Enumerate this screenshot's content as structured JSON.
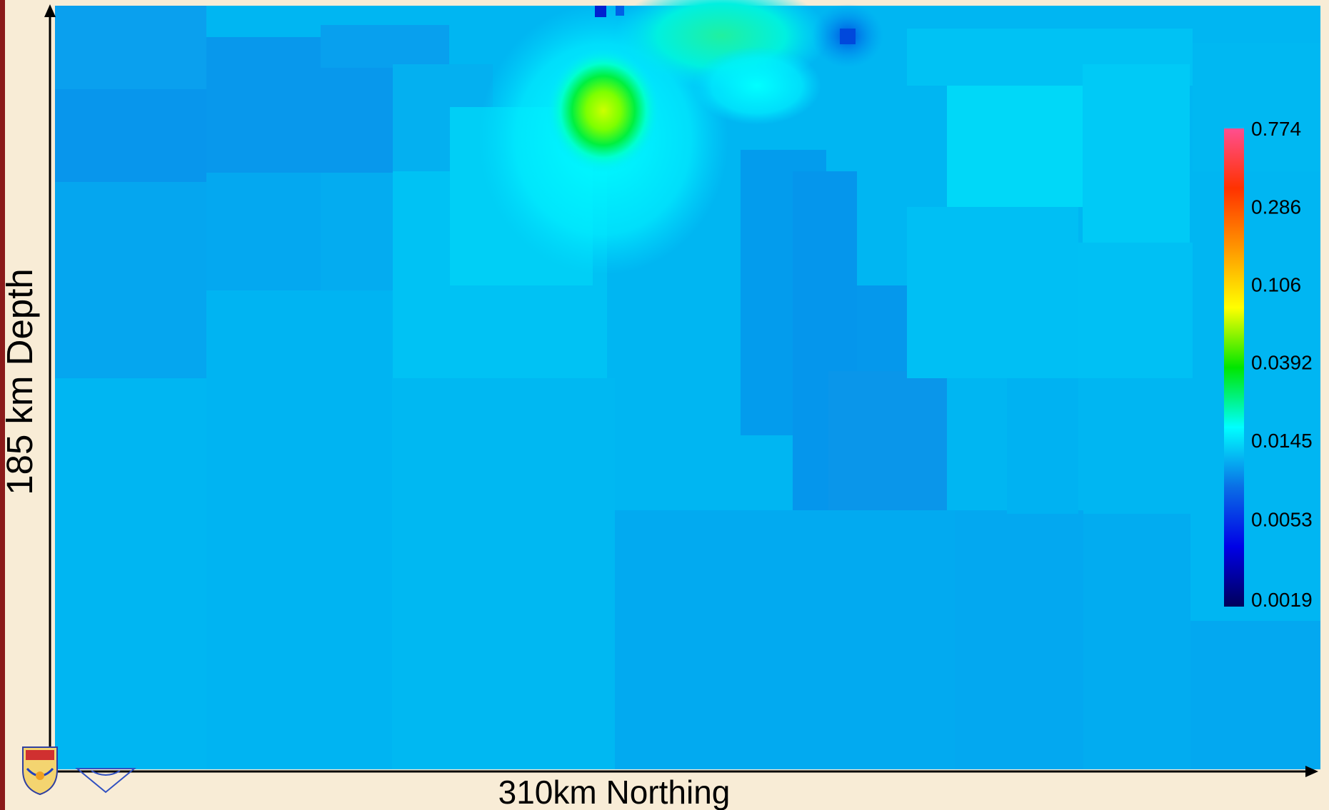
{
  "chart_data": {
    "type": "heatmap",
    "title": "",
    "xlabel": "310km Northing",
    "ylabel": "185 km Depth",
    "grid": false,
    "legend": "right",
    "colorbar": {
      "scale": "log",
      "ticks": [
        {
          "value": 0.774,
          "label": "0.774"
        },
        {
          "value": 0.286,
          "label": "0.286"
        },
        {
          "value": 0.106,
          "label": "0.106"
        },
        {
          "value": 0.0392,
          "label": "0.0392"
        },
        {
          "value": 0.0145,
          "label": "0.0145"
        },
        {
          "value": 0.0053,
          "label": "0.0053"
        },
        {
          "value": 0.0019,
          "label": "0.0019"
        }
      ],
      "colors": [
        "#00005a",
        "#0000e6",
        "#0a6ee6",
        "#00ffff",
        "#00e600",
        "#ffff00",
        "#ff9600",
        "#ff3200",
        "#ff4f8f"
      ]
    }
  },
  "colors": {
    "background": "#f8ecd6",
    "accent_band": "#8b1a1a",
    "field_base": "#00b4f0"
  },
  "icons": {
    "logo_left": "university-crest-icon",
    "logo_right": "institute-seal-icon"
  }
}
